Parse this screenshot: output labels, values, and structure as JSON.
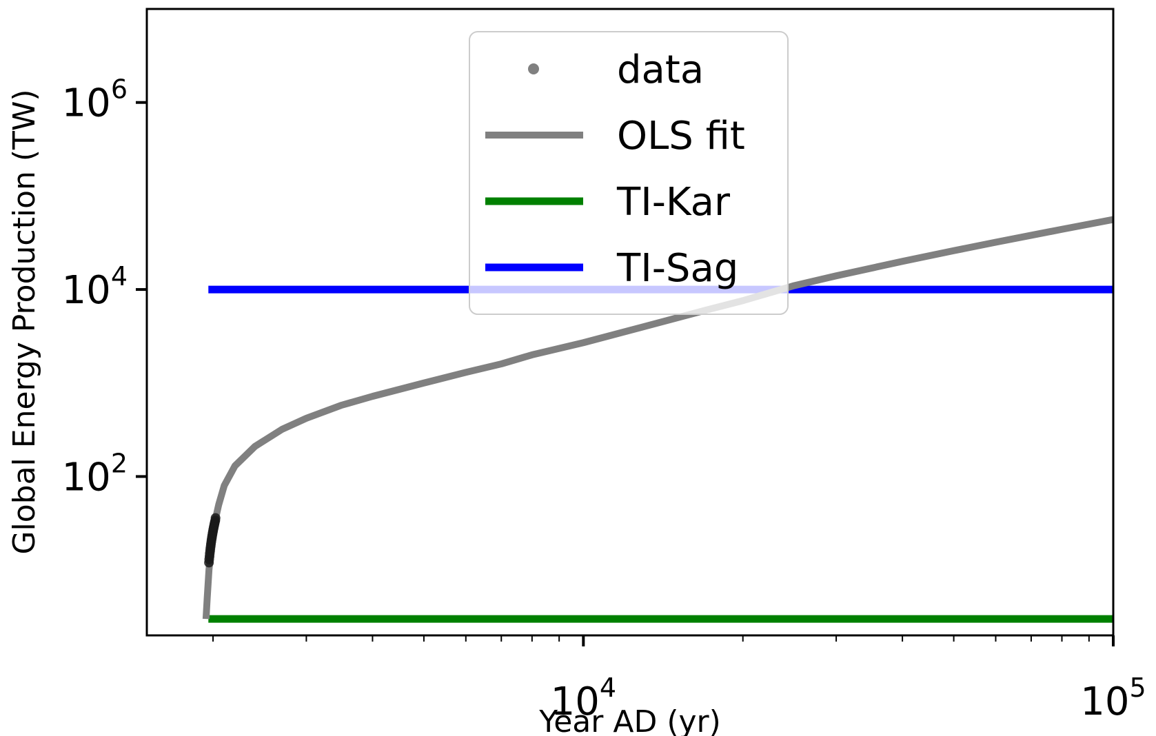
{
  "chart_data": {
    "type": "line",
    "title": "",
    "xlabel": "Year AD (yr)",
    "ylabel": "Global Energy Production (TW)",
    "xscale": "log",
    "yscale": "log",
    "xlim": [
      1500,
      100000
    ],
    "ylim": [
      2,
      10000000
    ],
    "grid": false,
    "legend_position": "top-center",
    "x_ticks": [
      {
        "value": 10000,
        "base": "10",
        "exp": "4"
      },
      {
        "value": 100000,
        "base": "10",
        "exp": "5"
      }
    ],
    "y_ticks": [
      {
        "value": 100,
        "base": "10",
        "exp": "2"
      },
      {
        "value": 10000,
        "base": "10",
        "exp": "4"
      },
      {
        "value": 1000000,
        "base": "10",
        "exp": "6"
      }
    ],
    "series": [
      {
        "name": "data",
        "kind": "scatter",
        "color": "#1a1a1a",
        "points": [
          [
            1965,
            12
          ],
          [
            1967,
            13
          ],
          [
            1970,
            14
          ],
          [
            1972,
            15
          ],
          [
            1975,
            16
          ],
          [
            1977,
            17
          ],
          [
            1980,
            18
          ],
          [
            1982,
            19
          ],
          [
            1985,
            20
          ],
          [
            1987,
            21
          ],
          [
            1990,
            22
          ],
          [
            1992,
            23
          ],
          [
            1995,
            24
          ],
          [
            1997,
            25
          ],
          [
            2000,
            26
          ],
          [
            2002,
            27
          ],
          [
            2005,
            28
          ],
          [
            2007,
            29
          ],
          [
            2010,
            30
          ],
          [
            2012,
            31
          ],
          [
            2015,
            32
          ],
          [
            2017,
            33
          ],
          [
            2020,
            34
          ],
          [
            2022,
            36
          ]
        ]
      },
      {
        "name": "OLS fit",
        "kind": "line",
        "color": "#808080",
        "x": [
          1940,
          1950,
          1965,
          1985,
          2000,
          2050,
          2100,
          2200,
          2400,
          2700,
          3000,
          3500,
          4000,
          5000,
          6000,
          7000,
          8000,
          10000,
          13000,
          17000,
          20000,
          25000,
          30000,
          40000,
          50000,
          60000,
          70000,
          80000,
          90000,
          100000
        ],
        "y": [
          3,
          5,
          10,
          18,
          27,
          50,
          80,
          130,
          210,
          320,
          420,
          580,
          720,
          1000,
          1300,
          1600,
          2000,
          2700,
          4000,
          6000,
          7600,
          11000,
          14000,
          20000,
          26000,
          32000,
          38000,
          44000,
          50000,
          56000
        ]
      },
      {
        "name": "TI-Kar",
        "kind": "line",
        "color": "#008000",
        "x": [
          1960,
          100000
        ],
        "y": [
          3,
          3
        ]
      },
      {
        "name": "TI-Sag",
        "kind": "line",
        "color": "#0000ff",
        "x": [
          1960,
          100000
        ],
        "y": [
          10000,
          10000
        ]
      }
    ]
  }
}
